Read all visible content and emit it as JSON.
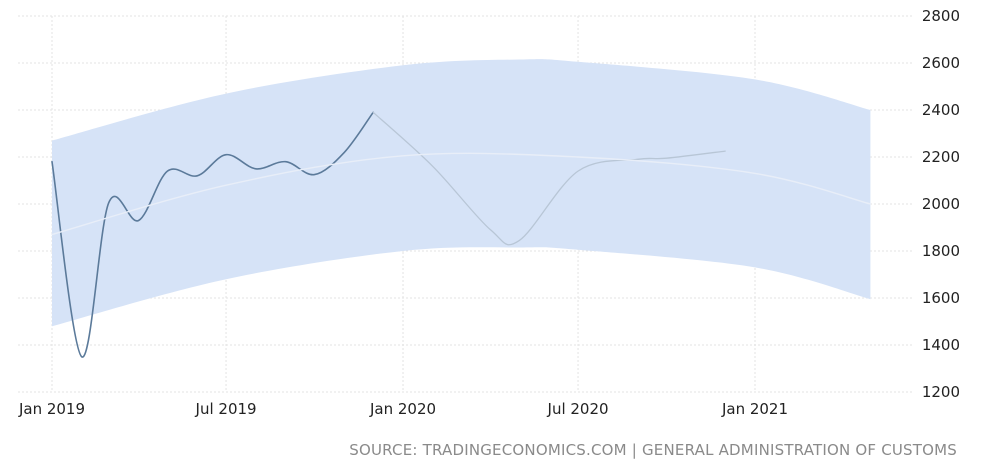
{
  "chart_data": {
    "type": "line",
    "title": "",
    "xlabel": "",
    "ylabel": "",
    "ylim": [
      1200,
      2800
    ],
    "y_ticks": [
      1200,
      1400,
      1600,
      1800,
      2000,
      2200,
      2400,
      2600,
      2800
    ],
    "x_tick_labels": [
      {
        "date": "2019-01-01",
        "label": "Jan 2019"
      },
      {
        "date": "2019-07-01",
        "label": "Jul 2019"
      },
      {
        "date": "2020-01-01",
        "label": "Jan 2020"
      },
      {
        "date": "2020-07-01",
        "label": "Jul 2020"
      },
      {
        "date": "2021-01-01",
        "label": "Jan 2021"
      }
    ],
    "grid": true,
    "y_axis_position": "right",
    "series": [
      {
        "kind": "actual",
        "color": "#5b7a9a",
        "points": [
          {
            "x": "2019-01-01",
            "y": 2180
          },
          {
            "x": "2019-02-01",
            "y": 1350
          },
          {
            "x": "2019-03-01",
            "y": 2005
          },
          {
            "x": "2019-04-01",
            "y": 1930
          },
          {
            "x": "2019-05-01",
            "y": 2140
          },
          {
            "x": "2019-06-01",
            "y": 2120
          },
          {
            "x": "2019-07-01",
            "y": 2210
          },
          {
            "x": "2019-08-01",
            "y": 2150
          },
          {
            "x": "2019-09-01",
            "y": 2180
          },
          {
            "x": "2019-10-01",
            "y": 2125
          },
          {
            "x": "2019-11-01",
            "y": 2220
          },
          {
            "x": "2019-12-01",
            "y": 2390
          }
        ]
      },
      {
        "kind": "forecast",
        "color": "#b8c6d6",
        "points": [
          {
            "x": "2019-12-01",
            "y": 2390
          },
          {
            "x": "2020-02-01",
            "y": 2160
          },
          {
            "x": "2020-04-01",
            "y": 1890
          },
          {
            "x": "2020-05-01",
            "y": 1845
          },
          {
            "x": "2020-07-01",
            "y": 2140
          },
          {
            "x": "2020-09-01",
            "y": 2190
          },
          {
            "x": "2020-10-01",
            "y": 2195
          },
          {
            "x": "2020-12-01",
            "y": 2225
          }
        ]
      },
      {
        "kind": "trend",
        "color": "#e8eef8",
        "points": [
          {
            "x": "2019-01-01",
            "y": 1870
          },
          {
            "x": "2019-07-01",
            "y": 2080
          },
          {
            "x": "2020-01-01",
            "y": 2205
          },
          {
            "x": "2020-07-01",
            "y": 2200
          },
          {
            "x": "2021-01-01",
            "y": 2130
          },
          {
            "x": "2021-05-01",
            "y": 2000
          }
        ]
      }
    ],
    "band": {
      "color": "#d6e3f7",
      "upper": [
        {
          "x": "2019-01-01",
          "y": 2270
        },
        {
          "x": "2019-07-01",
          "y": 2470
        },
        {
          "x": "2020-01-01",
          "y": 2590
        },
        {
          "x": "2020-05-01",
          "y": 2615
        },
        {
          "x": "2020-07-01",
          "y": 2605
        },
        {
          "x": "2021-01-01",
          "y": 2530
        },
        {
          "x": "2021-05-01",
          "y": 2400
        }
      ],
      "lower": [
        {
          "x": "2019-01-01",
          "y": 1480
        },
        {
          "x": "2019-07-01",
          "y": 1680
        },
        {
          "x": "2020-01-01",
          "y": 1800
        },
        {
          "x": "2020-05-01",
          "y": 1815
        },
        {
          "x": "2020-07-01",
          "y": 1805
        },
        {
          "x": "2021-01-01",
          "y": 1730
        },
        {
          "x": "2021-05-01",
          "y": 1595
        }
      ]
    }
  },
  "source": "SOURCE: TRADINGECONOMICS.COM | GENERAL ADMINISTRATION OF CUSTOMS"
}
